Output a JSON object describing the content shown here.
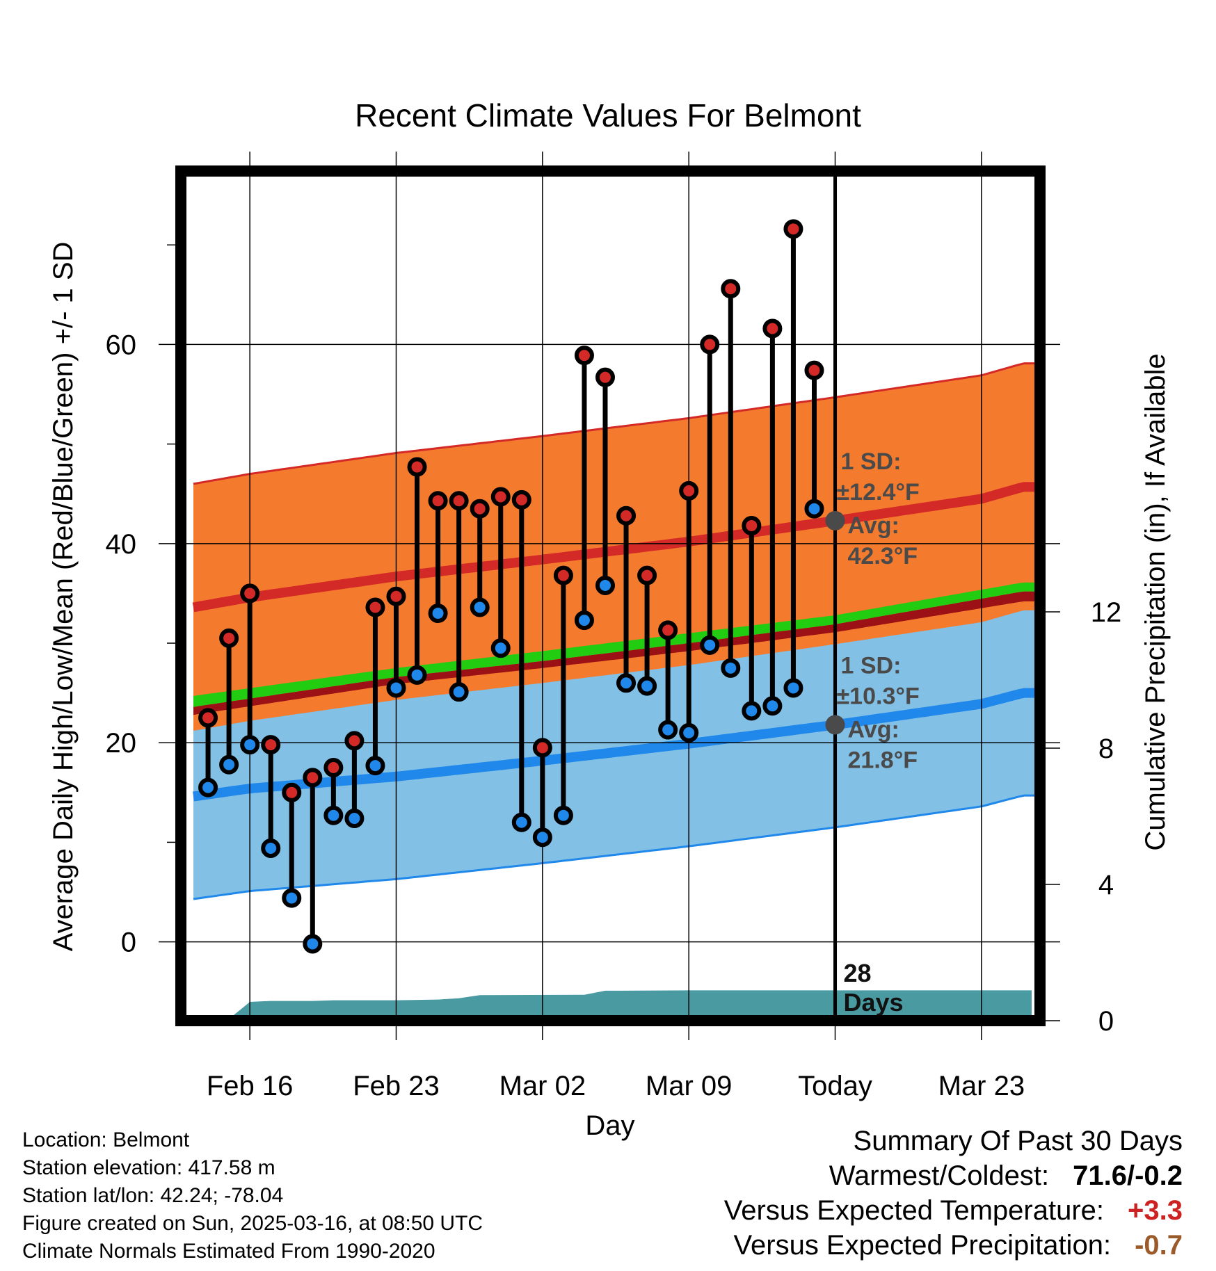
{
  "title": "Recent Climate Values For Belmont",
  "x_axis_title": "Day",
  "y_axis_title": "Average Daily High/Low/Mean (Red/Blue/Green) +/- 1 SD",
  "y2_axis_title": "Cumulative Precipitation (in), If Available",
  "colors": {
    "high_band": "#f47b2e",
    "high_line": "#d42a27",
    "low_band": "#82c0e6",
    "low_line": "#1f88ea",
    "mean_band": "#22cc11",
    "mean_lower": "#9b1116",
    "precip": "#4a9aa2",
    "stat_text": "#4a4a4a",
    "warm": "#cc2222",
    "precip_anom": "#9b5a2a"
  },
  "annotations": {
    "high_sd_1": "1 SD:",
    "high_sd_2": "±12.4°F",
    "high_avg_1": "Avg:",
    "high_avg_2": "42.3°F",
    "low_sd_1": "1 SD:",
    "low_sd_2": "±10.3°F",
    "low_avg_1": "Avg:",
    "low_avg_2": "21.8°F",
    "days_1": "28",
    "days_2": "Days"
  },
  "footer": {
    "location": "Location: Belmont",
    "elevation": "Station elevation: 417.58 m",
    "latlon": "Station lat/lon: 42.24; -78.04",
    "created": "Figure created on Sun, 2025-03-16, at 08:50 UTC",
    "normals": "Climate Normals Estimated From 1990-2020"
  },
  "summary": {
    "heading": "Summary Of Past 30 Days",
    "warm_cold_label": "Warmest/Coldest:",
    "warm_cold_value": "71.6/-0.2",
    "temp_label": "Versus Expected Temperature:",
    "temp_value": "+3.3",
    "precip_label": "Versus Expected Precipitation:",
    "precip_value": "-0.7"
  },
  "chart_data": {
    "type": "line",
    "x_ticks": [
      {
        "day": 0,
        "label": "Feb 16"
      },
      {
        "day": 7,
        "label": "Feb 23"
      },
      {
        "day": 14,
        "label": "Mar 02"
      },
      {
        "day": 21,
        "label": "Mar 09"
      },
      {
        "day": 28,
        "label": "Today"
      },
      {
        "day": 35,
        "label": "Mar 23"
      }
    ],
    "xlim": [
      -3.1,
      37.6
    ],
    "ylim": [
      -7.5,
      77
    ],
    "y_ticks": [
      0,
      20,
      40,
      60
    ],
    "y_minor_ticks": [
      -10,
      10,
      30,
      50,
      70
    ],
    "y2lim": [
      0,
      20
    ],
    "y2_ticks": [
      0,
      4,
      8,
      12
    ],
    "today_day": 28,
    "daily": [
      {
        "day": -2,
        "high": 22.5,
        "low": 15.5
      },
      {
        "day": -1,
        "high": 30.5,
        "low": 17.8
      },
      {
        "day": 0,
        "high": 35.0,
        "low": 19.8
      },
      {
        "day": 1,
        "high": 19.8,
        "low": 9.4
      },
      {
        "day": 2,
        "high": 15.0,
        "low": 4.4
      },
      {
        "day": 3,
        "high": 16.5,
        "low": -0.2
      },
      {
        "day": 4,
        "high": 17.5,
        "low": 12.7
      },
      {
        "day": 5,
        "high": 20.2,
        "low": 12.4
      },
      {
        "day": 6,
        "high": 33.6,
        "low": 17.7
      },
      {
        "day": 7,
        "high": 34.7,
        "low": 25.5
      },
      {
        "day": 8,
        "high": 47.7,
        "low": 26.8
      },
      {
        "day": 9,
        "high": 44.3,
        "low": 33.0
      },
      {
        "day": 10,
        "high": 44.3,
        "low": 25.1
      },
      {
        "day": 11,
        "high": 43.5,
        "low": 33.6
      },
      {
        "day": 12,
        "high": 44.7,
        "low": 29.5
      },
      {
        "day": 13,
        "high": 44.4,
        "low": 12.0
      },
      {
        "day": 14,
        "high": 19.5,
        "low": 10.5
      },
      {
        "day": 15,
        "high": 36.8,
        "low": 12.7
      },
      {
        "day": 16,
        "high": 58.9,
        "low": 32.3
      },
      {
        "day": 17,
        "high": 56.7,
        "low": 35.8
      },
      {
        "day": 18,
        "high": 42.8,
        "low": 26.0
      },
      {
        "day": 19,
        "high": 36.8,
        "low": 25.7
      },
      {
        "day": 20,
        "high": 31.3,
        "low": 21.3
      },
      {
        "day": 21,
        "high": 45.3,
        "low": 21.0
      },
      {
        "day": 22,
        "high": 60.0,
        "low": 29.8
      },
      {
        "day": 23,
        "high": 65.6,
        "low": 27.5
      },
      {
        "day": 24,
        "high": 41.8,
        "low": 23.2
      },
      {
        "day": 25,
        "high": 61.6,
        "low": 23.7
      },
      {
        "day": 26,
        "high": 71.6,
        "low": 25.5
      },
      {
        "day": 27,
        "high": 57.4,
        "low": 43.5
      }
    ],
    "normals": {
      "high_mean": [
        [
          -2.7,
          33.6
        ],
        [
          0,
          34.6
        ],
        [
          7,
          36.7
        ],
        [
          14,
          38.4
        ],
        [
          21,
          40.2
        ],
        [
          28,
          42.3
        ],
        [
          35,
          44.5
        ],
        [
          37,
          45.7
        ]
      ],
      "high_sd": 12.4,
      "low_mean": [
        [
          -2.7,
          14.6
        ],
        [
          0,
          15.4
        ],
        [
          7,
          16.6
        ],
        [
          14,
          18.2
        ],
        [
          21,
          19.9
        ],
        [
          28,
          21.8
        ],
        [
          35,
          23.9
        ],
        [
          37,
          25.0
        ]
      ],
      "low_sd": 10.3,
      "green_band": [
        [
          -2.7,
          23.6,
          24.7
        ],
        [
          7,
          26.6,
          27.5
        ],
        [
          14,
          28.2,
          29.2
        ],
        [
          21,
          30.0,
          31.0
        ],
        [
          28,
          31.9,
          32.8
        ],
        [
          37,
          35.2,
          36.1
        ]
      ],
      "maroon_band": [
        [
          -2.7,
          22.8,
          23.6
        ],
        [
          7,
          25.9,
          26.6
        ],
        [
          14,
          27.5,
          28.2
        ],
        [
          21,
          29.2,
          30.0
        ],
        [
          28,
          31.1,
          31.9
        ],
        [
          37,
          34.2,
          35.2
        ]
      ]
    },
    "precipitation": [
      [
        -1.1,
        0
      ],
      [
        0,
        0.55
      ],
      [
        1,
        0.58
      ],
      [
        3,
        0.58
      ],
      [
        4,
        0.6
      ],
      [
        7,
        0.6
      ],
      [
        9,
        0.62
      ],
      [
        10,
        0.66
      ],
      [
        11,
        0.75
      ],
      [
        16,
        0.76
      ],
      [
        17,
        0.88
      ],
      [
        21,
        0.89
      ],
      [
        28,
        0.89
      ],
      [
        37.4,
        0.89
      ]
    ]
  }
}
